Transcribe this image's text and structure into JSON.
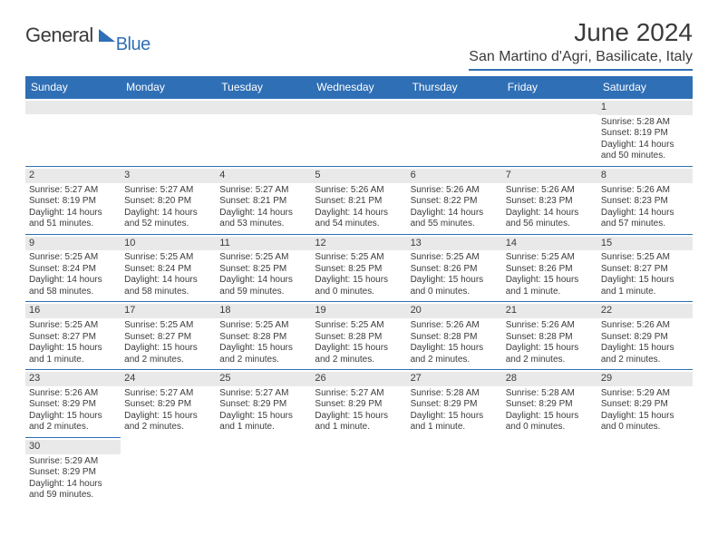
{
  "logo": {
    "general": "General",
    "blue": "Blue"
  },
  "title": "June 2024",
  "location": "San Martino d'Agri, Basilicate, Italy",
  "colors": {
    "header_bg": "#2f6fb5",
    "daynum_bg": "#e9e9e9",
    "text": "#3b3b3b",
    "page_bg": "#ffffff"
  },
  "day_headers": [
    "Sunday",
    "Monday",
    "Tuesday",
    "Wednesday",
    "Thursday",
    "Friday",
    "Saturday"
  ],
  "weeks": [
    [
      null,
      null,
      null,
      null,
      null,
      null,
      {
        "n": "1",
        "sr": "Sunrise: 5:28 AM",
        "ss": "Sunset: 8:19 PM",
        "dl1": "Daylight: 14 hours",
        "dl2": "and 50 minutes."
      }
    ],
    [
      {
        "n": "2",
        "sr": "Sunrise: 5:27 AM",
        "ss": "Sunset: 8:19 PM",
        "dl1": "Daylight: 14 hours",
        "dl2": "and 51 minutes."
      },
      {
        "n": "3",
        "sr": "Sunrise: 5:27 AM",
        "ss": "Sunset: 8:20 PM",
        "dl1": "Daylight: 14 hours",
        "dl2": "and 52 minutes."
      },
      {
        "n": "4",
        "sr": "Sunrise: 5:27 AM",
        "ss": "Sunset: 8:21 PM",
        "dl1": "Daylight: 14 hours",
        "dl2": "and 53 minutes."
      },
      {
        "n": "5",
        "sr": "Sunrise: 5:26 AM",
        "ss": "Sunset: 8:21 PM",
        "dl1": "Daylight: 14 hours",
        "dl2": "and 54 minutes."
      },
      {
        "n": "6",
        "sr": "Sunrise: 5:26 AM",
        "ss": "Sunset: 8:22 PM",
        "dl1": "Daylight: 14 hours",
        "dl2": "and 55 minutes."
      },
      {
        "n": "7",
        "sr": "Sunrise: 5:26 AM",
        "ss": "Sunset: 8:23 PM",
        "dl1": "Daylight: 14 hours",
        "dl2": "and 56 minutes."
      },
      {
        "n": "8",
        "sr": "Sunrise: 5:26 AM",
        "ss": "Sunset: 8:23 PM",
        "dl1": "Daylight: 14 hours",
        "dl2": "and 57 minutes."
      }
    ],
    [
      {
        "n": "9",
        "sr": "Sunrise: 5:25 AM",
        "ss": "Sunset: 8:24 PM",
        "dl1": "Daylight: 14 hours",
        "dl2": "and 58 minutes."
      },
      {
        "n": "10",
        "sr": "Sunrise: 5:25 AM",
        "ss": "Sunset: 8:24 PM",
        "dl1": "Daylight: 14 hours",
        "dl2": "and 58 minutes."
      },
      {
        "n": "11",
        "sr": "Sunrise: 5:25 AM",
        "ss": "Sunset: 8:25 PM",
        "dl1": "Daylight: 14 hours",
        "dl2": "and 59 minutes."
      },
      {
        "n": "12",
        "sr": "Sunrise: 5:25 AM",
        "ss": "Sunset: 8:25 PM",
        "dl1": "Daylight: 15 hours",
        "dl2": "and 0 minutes."
      },
      {
        "n": "13",
        "sr": "Sunrise: 5:25 AM",
        "ss": "Sunset: 8:26 PM",
        "dl1": "Daylight: 15 hours",
        "dl2": "and 0 minutes."
      },
      {
        "n": "14",
        "sr": "Sunrise: 5:25 AM",
        "ss": "Sunset: 8:26 PM",
        "dl1": "Daylight: 15 hours",
        "dl2": "and 1 minute."
      },
      {
        "n": "15",
        "sr": "Sunrise: 5:25 AM",
        "ss": "Sunset: 8:27 PM",
        "dl1": "Daylight: 15 hours",
        "dl2": "and 1 minute."
      }
    ],
    [
      {
        "n": "16",
        "sr": "Sunrise: 5:25 AM",
        "ss": "Sunset: 8:27 PM",
        "dl1": "Daylight: 15 hours",
        "dl2": "and 1 minute."
      },
      {
        "n": "17",
        "sr": "Sunrise: 5:25 AM",
        "ss": "Sunset: 8:27 PM",
        "dl1": "Daylight: 15 hours",
        "dl2": "and 2 minutes."
      },
      {
        "n": "18",
        "sr": "Sunrise: 5:25 AM",
        "ss": "Sunset: 8:28 PM",
        "dl1": "Daylight: 15 hours",
        "dl2": "and 2 minutes."
      },
      {
        "n": "19",
        "sr": "Sunrise: 5:25 AM",
        "ss": "Sunset: 8:28 PM",
        "dl1": "Daylight: 15 hours",
        "dl2": "and 2 minutes."
      },
      {
        "n": "20",
        "sr": "Sunrise: 5:26 AM",
        "ss": "Sunset: 8:28 PM",
        "dl1": "Daylight: 15 hours",
        "dl2": "and 2 minutes."
      },
      {
        "n": "21",
        "sr": "Sunrise: 5:26 AM",
        "ss": "Sunset: 8:28 PM",
        "dl1": "Daylight: 15 hours",
        "dl2": "and 2 minutes."
      },
      {
        "n": "22",
        "sr": "Sunrise: 5:26 AM",
        "ss": "Sunset: 8:29 PM",
        "dl1": "Daylight: 15 hours",
        "dl2": "and 2 minutes."
      }
    ],
    [
      {
        "n": "23",
        "sr": "Sunrise: 5:26 AM",
        "ss": "Sunset: 8:29 PM",
        "dl1": "Daylight: 15 hours",
        "dl2": "and 2 minutes."
      },
      {
        "n": "24",
        "sr": "Sunrise: 5:27 AM",
        "ss": "Sunset: 8:29 PM",
        "dl1": "Daylight: 15 hours",
        "dl2": "and 2 minutes."
      },
      {
        "n": "25",
        "sr": "Sunrise: 5:27 AM",
        "ss": "Sunset: 8:29 PM",
        "dl1": "Daylight: 15 hours",
        "dl2": "and 1 minute."
      },
      {
        "n": "26",
        "sr": "Sunrise: 5:27 AM",
        "ss": "Sunset: 8:29 PM",
        "dl1": "Daylight: 15 hours",
        "dl2": "and 1 minute."
      },
      {
        "n": "27",
        "sr": "Sunrise: 5:28 AM",
        "ss": "Sunset: 8:29 PM",
        "dl1": "Daylight: 15 hours",
        "dl2": "and 1 minute."
      },
      {
        "n": "28",
        "sr": "Sunrise: 5:28 AM",
        "ss": "Sunset: 8:29 PM",
        "dl1": "Daylight: 15 hours",
        "dl2": "and 0 minutes."
      },
      {
        "n": "29",
        "sr": "Sunrise: 5:29 AM",
        "ss": "Sunset: 8:29 PM",
        "dl1": "Daylight: 15 hours",
        "dl2": "and 0 minutes."
      }
    ],
    [
      {
        "n": "30",
        "sr": "Sunrise: 5:29 AM",
        "ss": "Sunset: 8:29 PM",
        "dl1": "Daylight: 14 hours",
        "dl2": "and 59 minutes."
      },
      null,
      null,
      null,
      null,
      null,
      null
    ]
  ]
}
